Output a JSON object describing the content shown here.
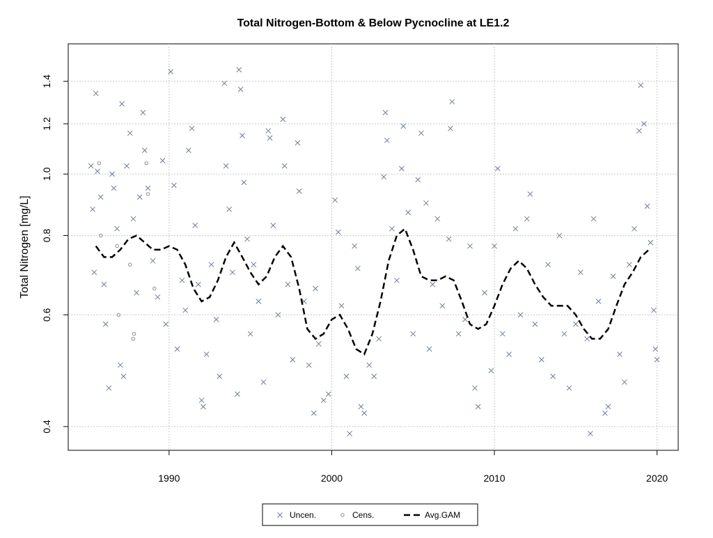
{
  "chart_data": {
    "type": "scatter",
    "title": "Total Nitrogen-Bottom & Below Pycnocline at LE1.2",
    "y_label": "Total Nitrogen [mg/L]",
    "log_y": true,
    "grid": true,
    "legend": "bottom",
    "xlim": [
      1983.8,
      2021.3
    ],
    "ylim": [
      0.367,
      1.604
    ],
    "xticks": [
      1990,
      2000,
      2010,
      2020
    ],
    "yticks": [
      0.4,
      0.6,
      0.8,
      1.0,
      1.2,
      1.4
    ],
    "series": [
      {
        "name": "Uncen.",
        "marker": "x",
        "color": "#6b7c96",
        "x": [
          1985.2,
          1985.3,
          1985.4,
          1985.5,
          1985.6,
          1985.8,
          1986,
          1986.1,
          1986.3,
          1986.5,
          1986.6,
          1986.8,
          1987,
          1987.1,
          1987.2,
          1987.4,
          1987.6,
          1987.8,
          1988,
          1988.2,
          1988.4,
          1988.5,
          1988.7,
          1989,
          1989.3,
          1989.6,
          1989.8,
          1990.1,
          1990.3,
          1990.5,
          1990.8,
          1991,
          1991.2,
          1991.4,
          1991.6,
          1991.8,
          1992,
          1992.1,
          1992.3,
          1992.6,
          1992.9,
          1993.1,
          1993.4,
          1993.5,
          1993.7,
          1993.9,
          1994.2,
          1994.3,
          1994.4,
          1994.5,
          1994.6,
          1994.8,
          1995,
          1995.2,
          1995.5,
          1995.8,
          1996.1,
          1996.2,
          1996.4,
          1996.7,
          1997,
          1997.1,
          1997.3,
          1997.6,
          1997.9,
          1998,
          1998.3,
          1998.6,
          1998.9,
          1999,
          1999.2,
          1999.5,
          1999.8,
          2000.2,
          2000.4,
          2000.6,
          2000.9,
          2001.1,
          2001.4,
          2001.6,
          2001.8,
          2002,
          2002.3,
          2002.6,
          2002.9,
          2003.2,
          2003.3,
          2003.4,
          2003.7,
          2004,
          2004.3,
          2004.4,
          2004.7,
          2005,
          2005.3,
          2005.5,
          2005.8,
          2006,
          2006.2,
          2006.5,
          2006.8,
          2007.2,
          2007.3,
          2007.4,
          2007.8,
          2008.2,
          2008.5,
          2008.8,
          2009,
          2009.4,
          2009.8,
          2010,
          2010.2,
          2010.5,
          2010.9,
          2011.3,
          2011.6,
          2012,
          2012.2,
          2012.5,
          2012.9,
          2013.3,
          2013.6,
          2014,
          2014.3,
          2014.6,
          2015,
          2015.3,
          2015.7,
          2015.9,
          2016.1,
          2016.4,
          2016.8,
          2017,
          2017.3,
          2017.7,
          2018,
          2018.3,
          2018.6,
          2018.9,
          2019,
          2019.2,
          2019.4,
          2019.6,
          2019.8,
          2019.9,
          2020
        ],
        "values": [
          1.03,
          0.88,
          0.7,
          1.34,
          1.01,
          0.92,
          0.67,
          0.58,
          0.46,
          1.0,
          0.95,
          0.82,
          0.5,
          1.29,
          0.48,
          1.03,
          1.16,
          0.85,
          0.65,
          0.92,
          1.25,
          1.09,
          0.95,
          0.73,
          0.64,
          1.05,
          0.58,
          1.45,
          0.96,
          0.53,
          0.68,
          0.61,
          1.09,
          1.18,
          0.83,
          0.67,
          0.44,
          0.43,
          0.52,
          0.72,
          0.59,
          0.48,
          1.39,
          1.03,
          0.88,
          0.7,
          0.45,
          1.46,
          1.36,
          1.15,
          0.97,
          0.79,
          0.56,
          0.72,
          0.63,
          0.47,
          1.17,
          1.14,
          0.83,
          0.6,
          1.22,
          1.03,
          0.67,
          0.51,
          1.12,
          0.94,
          0.63,
          0.5,
          0.42,
          0.66,
          0.54,
          0.44,
          0.45,
          0.91,
          0.81,
          0.62,
          0.48,
          0.39,
          0.77,
          0.71,
          0.43,
          0.42,
          0.5,
          0.48,
          0.55,
          0.99,
          1.25,
          1.13,
          0.82,
          0.68,
          1.02,
          1.19,
          0.87,
          0.56,
          0.98,
          1.16,
          0.9,
          0.53,
          0.67,
          0.85,
          0.62,
          0.79,
          1.18,
          1.3,
          0.56,
          0.59,
          0.77,
          0.46,
          0.43,
          0.65,
          0.49,
          0.77,
          1.02,
          0.56,
          0.52,
          0.82,
          0.6,
          0.85,
          0.93,
          0.58,
          0.51,
          0.72,
          0.48,
          0.8,
          0.56,
          0.46,
          0.58,
          0.7,
          0.55,
          0.39,
          0.85,
          0.63,
          0.42,
          0.43,
          0.69,
          0.52,
          0.47,
          0.72,
          0.82,
          1.17,
          1.38,
          1.2,
          0.89,
          0.78,
          0.61,
          0.53,
          0.51
        ]
      },
      {
        "name": "Cens.",
        "marker": "o",
        "color": "#8a8a8a",
        "x": [
          1985.7,
          1985.8,
          1986.8,
          1986.9,
          1987.6,
          1987.8,
          1987.85,
          1988.6,
          1988.7,
          1989.1
        ],
        "values": [
          1.04,
          0.8,
          0.77,
          0.6,
          0.72,
          0.55,
          0.56,
          1.04,
          0.93,
          0.66
        ]
      },
      {
        "name": "Avg.GAM",
        "marker": "line",
        "color": "#000000",
        "x": [
          1985.5,
          1986,
          1986.5,
          1987,
          1987.5,
          1988,
          1988.5,
          1989,
          1989.5,
          1990,
          1990.5,
          1991,
          1991.5,
          1992,
          1992.5,
          1993,
          1993.5,
          1994,
          1994.5,
          1995,
          1995.5,
          1996,
          1996.5,
          1997,
          1997.5,
          1998,
          1998.5,
          1999,
          1999.5,
          2000,
          2000.5,
          2001,
          2001.5,
          2002,
          2002.5,
          2003,
          2003.5,
          2004,
          2004.5,
          2005,
          2005.5,
          2006,
          2006.5,
          2007,
          2007.5,
          2008,
          2008.5,
          2009,
          2009.5,
          2010,
          2010.5,
          2011,
          2011.5,
          2012,
          2012.5,
          2013,
          2013.5,
          2014,
          2014.5,
          2015,
          2015.5,
          2016,
          2016.5,
          2017,
          2017.5,
          2018,
          2018.5,
          2019,
          2019.5
        ],
        "values": [
          0.77,
          0.74,
          0.74,
          0.76,
          0.79,
          0.8,
          0.78,
          0.76,
          0.76,
          0.77,
          0.76,
          0.72,
          0.66,
          0.63,
          0.64,
          0.68,
          0.74,
          0.78,
          0.74,
          0.7,
          0.67,
          0.69,
          0.74,
          0.77,
          0.74,
          0.66,
          0.57,
          0.55,
          0.56,
          0.59,
          0.6,
          0.57,
          0.53,
          0.52,
          0.56,
          0.63,
          0.73,
          0.8,
          0.82,
          0.76,
          0.69,
          0.68,
          0.68,
          0.69,
          0.68,
          0.63,
          0.58,
          0.57,
          0.58,
          0.62,
          0.67,
          0.71,
          0.73,
          0.71,
          0.67,
          0.64,
          0.62,
          0.62,
          0.62,
          0.6,
          0.57,
          0.55,
          0.55,
          0.57,
          0.62,
          0.67,
          0.7,
          0.74,
          0.76
        ]
      }
    ]
  }
}
